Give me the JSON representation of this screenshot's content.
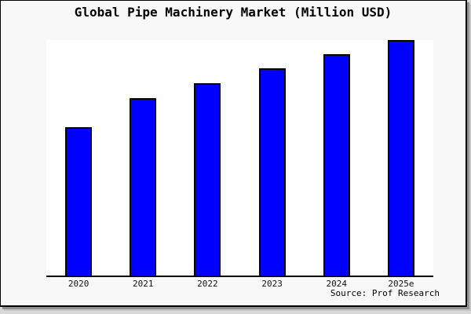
{
  "chart": {
    "source_label": "Source: Prof Research"
  },
  "colors": {
    "bar_fill": "#0000ff",
    "bar_border": "#000000",
    "plot_background": "#ffffff",
    "card_background": "#f8f8f8",
    "frame": "#000000",
    "text": "#000000",
    "shadow_dark": "#929292",
    "shadow_light": "#c6c6c6"
  },
  "chart_data": {
    "type": "bar",
    "title": "Global Pipe Machinery Market (Million USD)",
    "categories": [
      "2020",
      "2021",
      "2022",
      "2023",
      "2024",
      "2025e"
    ],
    "values": [
      63,
      75.3,
      81.7,
      88,
      94,
      100
    ],
    "values_are": "relative bar heights, tallest bar (2025e) = 100; no numeric axis, ticks or data labels shown",
    "series_name": "Global Pipe Machinery Market",
    "xlabel": "",
    "ylabel": "",
    "ylim": [
      0,
      100
    ],
    "grid": false,
    "legend": "none",
    "annotation": "Source: Prof Research"
  }
}
